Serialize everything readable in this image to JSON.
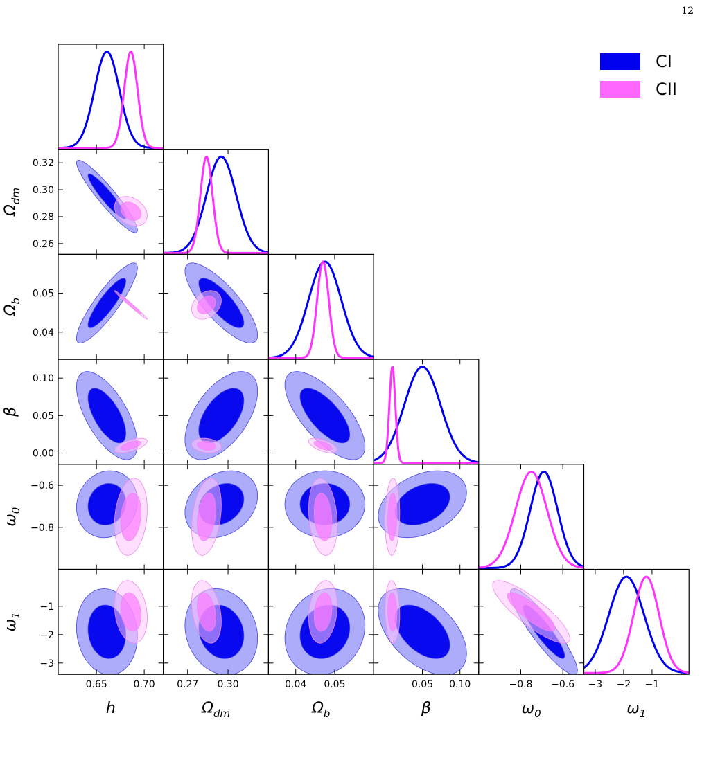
{
  "page_number": "12",
  "legend": [
    {
      "label": "CI",
      "color": "#0000ee"
    },
    {
      "label": "CII",
      "color": "#ff33ff"
    }
  ],
  "chart_data": {
    "type": "corner",
    "parameters": [
      {
        "name": "h",
        "sub": "",
        "ticks": [
          0.65,
          0.7
        ],
        "tick_labels": [
          "0.65",
          "0.70"
        ],
        "range": [
          0.61,
          0.72
        ]
      },
      {
        "name": "Ω",
        "sub": "dm",
        "ticks": [
          0.27,
          0.3
        ],
        "tick_labels": [
          "0.27",
          "0.30"
        ],
        "range": [
          0.252,
          0.33
        ]
      },
      {
        "name": "Ω",
        "sub": "b",
        "ticks": [
          0.04,
          0.05
        ],
        "tick_labels": [
          "0.04",
          "0.05"
        ],
        "range": [
          0.033,
          0.06
        ]
      },
      {
        "name": "β",
        "sub": "",
        "ticks": [
          0.05,
          0.1
        ],
        "tick_labels": [
          "0.05",
          "0.10"
        ],
        "range": [
          -0.015,
          0.125
        ]
      },
      {
        "name": "ω",
        "sub": "0",
        "ticks": [
          -0.8,
          -0.6
        ],
        "tick_labels": [
          "−0.8",
          "−0.6"
        ],
        "range": [
          -1.0,
          -0.5
        ]
      },
      {
        "name": "ω",
        "sub": "1",
        "ticks": [
          -3,
          -2,
          -1
        ],
        "tick_labels": [
          "−3",
          "−2",
          "−1"
        ],
        "range": [
          -3.4,
          0.3
        ]
      }
    ],
    "y_ticks": [
      null,
      {
        "ticks": [
          0.26,
          0.28,
          0.3,
          0.32
        ],
        "labels": [
          "0.26",
          "0.28",
          "0.30",
          "0.32"
        ]
      },
      {
        "ticks": [
          0.04,
          0.05
        ],
        "labels": [
          "0.04",
          "0.05"
        ]
      },
      {
        "ticks": [
          0.0,
          0.05,
          0.1
        ],
        "labels": [
          "0.00",
          "0.05",
          "0.10"
        ]
      },
      {
        "ticks": [
          -0.8,
          -0.6
        ],
        "labels": [
          "−0.8",
          "−0.6"
        ]
      },
      {
        "ticks": [
          -3,
          -2,
          -1
        ],
        "labels": [
          "−3",
          "−2",
          "−1"
        ]
      }
    ],
    "series": [
      {
        "name": "CI",
        "color": "#0000ee",
        "mean": [
          0.661,
          0.295,
          0.0475,
          0.05,
          -0.69,
          -1.9
        ],
        "sd": [
          0.013,
          0.011,
          0.0042,
          0.024,
          0.065,
          0.62
        ],
        "corr": [
          [
            1,
            -0.93,
            0.88,
            -0.65,
            0.1,
            -0.1
          ],
          [
            -0.93,
            1,
            -0.8,
            0.55,
            0.25,
            -0.15
          ],
          [
            0.88,
            -0.8,
            1,
            -0.7,
            0.0,
            0.15
          ],
          [
            -0.65,
            0.55,
            -0.7,
            1,
            0.35,
            -0.5
          ],
          [
            0.1,
            0.25,
            0.0,
            0.35,
            1,
            -0.9
          ],
          [
            -0.1,
            -0.15,
            0.15,
            -0.5,
            -0.9,
            1
          ]
        ]
      },
      {
        "name": "CII",
        "color": "#ff33ff",
        "mean": [
          0.686,
          0.284,
          0.047,
          0.01,
          -0.75,
          -1.2
        ],
        "sd": [
          0.007,
          0.0045,
          0.0015,
          0.004,
          0.075,
          0.45
        ],
        "corr": [
          [
            1,
            -0.3,
            -0.99,
            0.6,
            0.2,
            -0.2
          ],
          [
            -0.3,
            1,
            0.3,
            -0.2,
            0.3,
            -0.3
          ],
          [
            -0.99,
            0.3,
            1,
            -0.6,
            -0.2,
            0.2
          ],
          [
            0.6,
            -0.2,
            -0.6,
            1,
            0.1,
            -0.1
          ],
          [
            0.2,
            0.3,
            -0.2,
            0.1,
            1,
            -0.85
          ],
          [
            -0.2,
            -0.3,
            0.2,
            -0.1,
            -0.85,
            1
          ]
        ]
      }
    ]
  }
}
